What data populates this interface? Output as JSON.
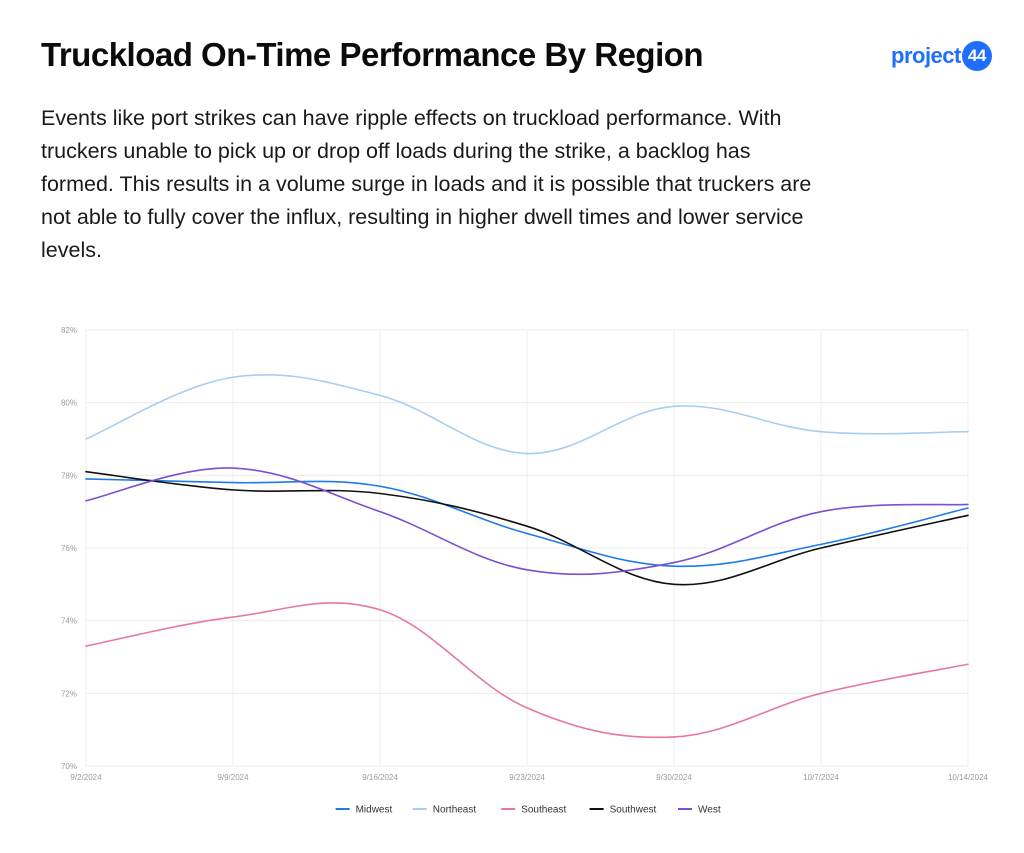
{
  "header": {
    "title": "Truckload On-Time Performance By Region",
    "logo_text": "project",
    "logo_badge": "44",
    "description": "Events like port strikes can have ripple effects on truckload performance. With truckers unable to pick up or drop off loads during the strike, a backlog has formed. This results in a volume surge in loads and it is possible that truckers are not able to fully cover the influx, resulting in higher dwell times and lower service levels."
  },
  "chart_data": {
    "type": "line",
    "title": "",
    "xlabel": "",
    "ylabel": "",
    "categories": [
      "9/2/2024",
      "9/9/2024",
      "9/16/2024",
      "9/23/2024",
      "9/30/2024",
      "10/7/2024",
      "10/14/2024"
    ],
    "y_ticks": [
      "70%",
      "72%",
      "74%",
      "76%",
      "78%",
      "80%",
      "82%"
    ],
    "ylim": [
      70,
      82
    ],
    "grid": true,
    "legend_position": "bottom",
    "series": [
      {
        "name": "Midwest",
        "color": "#1e7ae8",
        "values": [
          77.9,
          77.8,
          77.7,
          76.4,
          75.5,
          76.1,
          77.1
        ]
      },
      {
        "name": "Northeast",
        "color": "#a9cdf2",
        "values": [
          79.0,
          80.7,
          80.2,
          78.6,
          79.9,
          79.2,
          79.2
        ]
      },
      {
        "name": "Southeast",
        "color": "#e8779f",
        "values": [
          73.3,
          74.1,
          74.3,
          71.6,
          70.8,
          72.0,
          72.8
        ]
      },
      {
        "name": "Southwest",
        "color": "#111111",
        "values": [
          78.1,
          77.6,
          77.5,
          76.6,
          75.0,
          76.0,
          76.9
        ]
      },
      {
        "name": "West",
        "color": "#7b4fd1",
        "values": [
          77.3,
          78.2,
          77.0,
          75.4,
          75.6,
          77.0,
          77.2
        ]
      }
    ]
  }
}
